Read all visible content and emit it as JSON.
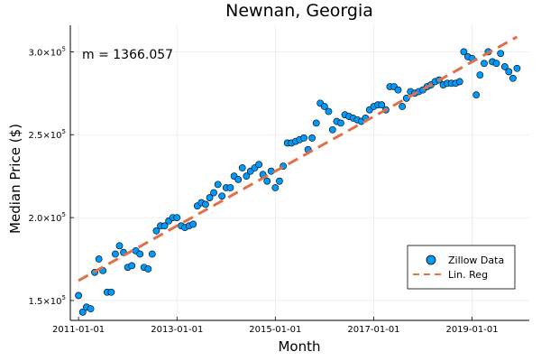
{
  "chart_data": {
    "type": "scatter",
    "title": "Newnan, Georgia",
    "xlabel": "Month",
    "ylabel": "Median Price ($)",
    "xlim": [
      "2010-11-01",
      "2020-03-01"
    ],
    "ylim": [
      138000,
      316000
    ],
    "grid": true,
    "legend_placement": "bottom-right",
    "colors": {
      "points": "#009AFA",
      "regression": "#E26F46"
    },
    "x_ticks": [
      "2011-01-01",
      "2013-01-01",
      "2015-01-01",
      "2017-01-01",
      "2019-01-01"
    ],
    "y_ticks": [
      150000,
      200000,
      250000,
      300000
    ],
    "y_tick_labels": [
      {
        "mantissa": "1.5×10",
        "exp": "5"
      },
      {
        "mantissa": "2.0×10",
        "exp": "5"
      },
      {
        "mantissa": "2.5×10",
        "exp": "5"
      },
      {
        "mantissa": "3.0×10",
        "exp": "5"
      }
    ],
    "annotation": "m = 1366.057",
    "series": [
      {
        "name": "Zillow Data",
        "kind": "scatter",
        "x": [
          "2011-01-01",
          "2011-02-01",
          "2011-03-01",
          "2011-04-01",
          "2011-05-01",
          "2011-06-01",
          "2011-07-01",
          "2011-08-01",
          "2011-09-01",
          "2011-10-01",
          "2011-11-01",
          "2011-12-01",
          "2012-01-01",
          "2012-02-01",
          "2012-03-01",
          "2012-04-01",
          "2012-05-01",
          "2012-06-01",
          "2012-07-01",
          "2012-08-01",
          "2012-09-01",
          "2012-10-01",
          "2012-11-01",
          "2012-12-01",
          "2013-01-01",
          "2013-02-01",
          "2013-03-01",
          "2013-04-01",
          "2013-05-01",
          "2013-06-01",
          "2013-07-01",
          "2013-08-01",
          "2013-09-01",
          "2013-10-01",
          "2013-11-01",
          "2013-12-01",
          "2014-01-01",
          "2014-02-01",
          "2014-03-01",
          "2014-04-01",
          "2014-05-01",
          "2014-06-01",
          "2014-07-01",
          "2014-08-01",
          "2014-09-01",
          "2014-10-01",
          "2014-11-01",
          "2014-12-01",
          "2015-01-01",
          "2015-02-01",
          "2015-03-01",
          "2015-04-01",
          "2015-05-01",
          "2015-06-01",
          "2015-07-01",
          "2015-08-01",
          "2015-09-01",
          "2015-10-01",
          "2015-11-01",
          "2015-12-01",
          "2016-01-01",
          "2016-02-01",
          "2016-03-01",
          "2016-04-01",
          "2016-05-01",
          "2016-06-01",
          "2016-07-01",
          "2016-08-01",
          "2016-09-01",
          "2016-10-01",
          "2016-11-01",
          "2016-12-01",
          "2017-01-01",
          "2017-02-01",
          "2017-03-01",
          "2017-04-01",
          "2017-05-01",
          "2017-06-01",
          "2017-07-01",
          "2017-08-01",
          "2017-09-01",
          "2017-10-01",
          "2017-11-01",
          "2017-12-01",
          "2018-01-01",
          "2018-02-01",
          "2018-03-01",
          "2018-04-01",
          "2018-05-01",
          "2018-06-01",
          "2018-07-01",
          "2018-08-01",
          "2018-09-01",
          "2018-10-01",
          "2018-11-01",
          "2018-12-01",
          "2019-01-01",
          "2019-02-01",
          "2019-03-01",
          "2019-04-01",
          "2019-05-01",
          "2019-06-01",
          "2019-07-01",
          "2019-08-01",
          "2019-09-01",
          "2019-10-01",
          "2019-11-01",
          "2019-12-01"
        ],
        "y": [
          153000,
          143000,
          146000,
          145000,
          167000,
          175000,
          168000,
          155000,
          155000,
          178000,
          183000,
          179000,
          170000,
          171000,
          180000,
          178000,
          170000,
          169000,
          178000,
          192000,
          195000,
          195000,
          198000,
          200000,
          200000,
          195000,
          194000,
          195000,
          196000,
          207000,
          209000,
          208000,
          212000,
          215000,
          220000,
          213000,
          218000,
          218000,
          225000,
          223000,
          230000,
          225000,
          228000,
          230000,
          232000,
          226000,
          222000,
          228000,
          218000,
          222000,
          231000,
          245000,
          245000,
          246000,
          247000,
          248000,
          241000,
          248000,
          257000,
          269000,
          267000,
          264000,
          253000,
          258000,
          257000,
          262000,
          261000,
          260000,
          259000,
          258000,
          260000,
          265000,
          267000,
          268000,
          268000,
          265000,
          279000,
          279000,
          277000,
          267000,
          272000,
          276000,
          275000,
          276000,
          277000,
          279000,
          280000,
          282000,
          283000,
          280000,
          281000,
          281000,
          281000,
          282000,
          300000,
          297000,
          296000,
          274000,
          286000,
          293000,
          300000,
          294000,
          293000,
          299000,
          291000,
          288000,
          284000,
          290000
        ]
      },
      {
        "name": "Lin. Reg",
        "kind": "line",
        "x": [
          "2011-01-01",
          "2019-12-01"
        ],
        "y": [
          162000,
          309000
        ]
      }
    ]
  }
}
